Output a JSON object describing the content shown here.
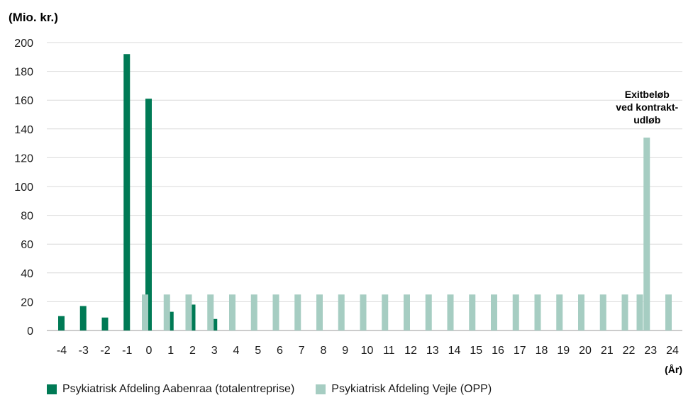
{
  "chart_data": {
    "type": "bar",
    "title": "",
    "ylabel": "(Mio. kr.)",
    "xlabel": "(År)",
    "ylim": [
      0,
      200
    ],
    "yticks": [
      0,
      20,
      40,
      60,
      80,
      100,
      120,
      140,
      160,
      180,
      200
    ],
    "grid": true,
    "legend_position": "bottom-left",
    "categories": [
      "-4",
      "-3",
      "-2",
      "-1",
      "0",
      "1",
      "2",
      "3",
      "4",
      "5",
      "6",
      "7",
      "8",
      "9",
      "10",
      "11",
      "12",
      "13",
      "14",
      "15",
      "16",
      "17",
      "18",
      "19",
      "20",
      "21",
      "22",
      "23",
      "24"
    ],
    "series": [
      {
        "name": "Psykiatrisk Afdeling Aabenraa (totalentreprise)",
        "color": "#007a55",
        "values": [
          10,
          17,
          9,
          192,
          161,
          13,
          18,
          8,
          0,
          0,
          0,
          0,
          0,
          0,
          0,
          0,
          0,
          0,
          0,
          0,
          0,
          0,
          0,
          0,
          0,
          0,
          0,
          0,
          0
        ]
      },
      {
        "name": "Psykiatrisk Afdeling Vejle (OPP)",
        "color": "#a6cdc2",
        "values": [
          0,
          0,
          0,
          0,
          25,
          25,
          25,
          25,
          25,
          25,
          25,
          25,
          25,
          25,
          25,
          25,
          25,
          25,
          25,
          25,
          25,
          25,
          25,
          25,
          25,
          25,
          25,
          134,
          25
        ],
        "extra_bars": [
          {
            "category": "22",
            "value": 25
          }
        ]
      }
    ],
    "annotations": [
      {
        "lines": [
          "Exitbeløb",
          "ved kontrakt-",
          "udløb"
        ],
        "category": "23"
      }
    ]
  }
}
